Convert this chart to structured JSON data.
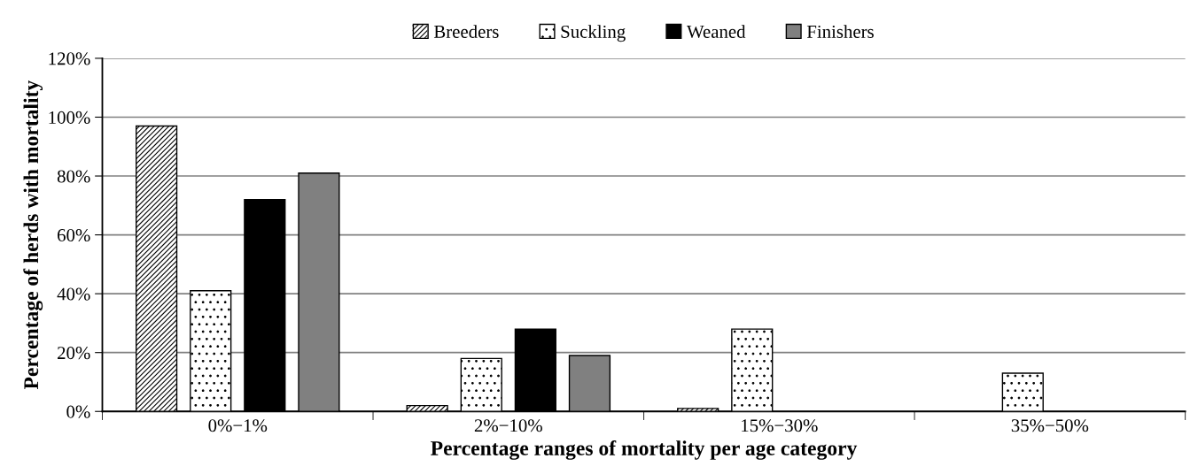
{
  "chart_data": {
    "type": "bar",
    "xlabel": "Percentage ranges of mortality per age category",
    "ylabel": "Percentage of herds with mortality",
    "categories": [
      "0%−1%",
      "2%−10%",
      "15%−30%",
      "35%−50%"
    ],
    "series": [
      {
        "name": "Breeders",
        "color": "#ffffff",
        "values": [
          97,
          2,
          1,
          null
        ]
      },
      {
        "name": "Suckling",
        "color": "#ffffff",
        "values": [
          41,
          18,
          28,
          13
        ]
      },
      {
        "name": "Weaned",
        "color": "#000000",
        "values": [
          72,
          28,
          null,
          null
        ]
      },
      {
        "name": "Finishers",
        "color": "#808080",
        "values": [
          81,
          19,
          null,
          null
        ]
      }
    ],
    "ylim": [
      0,
      120
    ],
    "yticks": [
      {
        "value": 0,
        "label": "0%"
      },
      {
        "value": 20,
        "label": "20%"
      },
      {
        "value": 40,
        "label": "40%"
      },
      {
        "value": 60,
        "label": "60%"
      },
      {
        "value": 80,
        "label": "80%"
      },
      {
        "value": 100,
        "label": "100%"
      },
      {
        "value": 120,
        "label": "120%"
      }
    ],
    "grid": "y",
    "legend": "top"
  }
}
